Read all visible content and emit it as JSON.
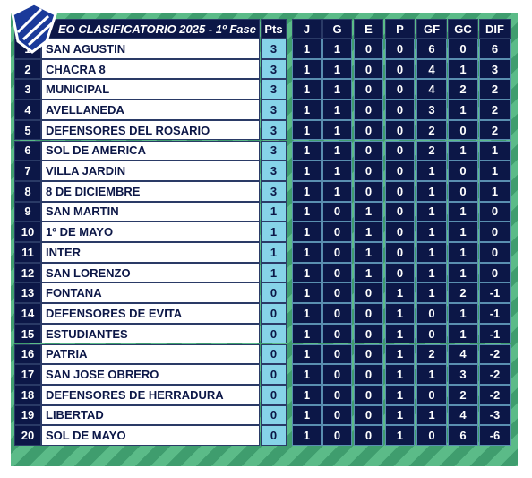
{
  "table": {
    "header": [
      "EO CLASIFICATORIO 2025 - 1º Fase",
      "Pts",
      "J",
      "G",
      "E",
      "P",
      "GF",
      "GC",
      "DIF"
    ],
    "rows": [
      [
        1,
        "SAN AGUSTIN",
        3,
        1,
        1,
        0,
        0,
        6,
        0,
        6
      ],
      [
        2,
        "CHACRA 8",
        3,
        1,
        1,
        0,
        0,
        4,
        1,
        3
      ],
      [
        3,
        "MUNICIPAL",
        3,
        1,
        1,
        0,
        0,
        4,
        2,
        2
      ],
      [
        4,
        "AVELLANEDA",
        3,
        1,
        1,
        0,
        0,
        3,
        1,
        2
      ],
      [
        5,
        "DEFENSORES DEL ROSARIO",
        3,
        1,
        1,
        0,
        0,
        2,
        0,
        2
      ],
      [
        6,
        "SOL DE AMERICA",
        3,
        1,
        1,
        0,
        0,
        2,
        1,
        1
      ],
      [
        7,
        "VILLA JARDIN",
        3,
        1,
        1,
        0,
        0,
        1,
        0,
        1
      ],
      [
        8,
        "8 DE DICIEMBRE",
        3,
        1,
        1,
        0,
        0,
        1,
        0,
        1
      ],
      [
        9,
        "SAN MARTIN",
        1,
        1,
        0,
        1,
        0,
        1,
        1,
        0
      ],
      [
        10,
        "1º DE MAYO",
        1,
        1,
        0,
        1,
        0,
        1,
        1,
        0
      ],
      [
        11,
        "INTER",
        1,
        1,
        0,
        1,
        0,
        1,
        1,
        0
      ],
      [
        12,
        "SAN LORENZO",
        1,
        1,
        0,
        1,
        0,
        1,
        1,
        0
      ],
      [
        13,
        "FONTANA",
        0,
        1,
        0,
        0,
        1,
        1,
        2,
        -1
      ],
      [
        14,
        "DEFENSORES DE EVITA",
        0,
        1,
        0,
        0,
        1,
        0,
        1,
        -1
      ],
      [
        15,
        "ESTUDIANTES",
        0,
        1,
        0,
        0,
        1,
        0,
        1,
        -1
      ],
      [
        16,
        "PATRIA",
        0,
        1,
        0,
        0,
        1,
        2,
        4,
        -2
      ],
      [
        17,
        "SAN JOSE OBRERO",
        0,
        1,
        0,
        0,
        1,
        1,
        3,
        -2
      ],
      [
        18,
        "DEFENSORES DE HERRADURA",
        0,
        1,
        0,
        0,
        1,
        0,
        2,
        -2
      ],
      [
        19,
        "LIBERTAD",
        0,
        1,
        0,
        0,
        1,
        1,
        4,
        -3
      ],
      [
        20,
        "SOL DE MAYO",
        0,
        1,
        0,
        0,
        1,
        0,
        6,
        -6
      ]
    ]
  }
}
